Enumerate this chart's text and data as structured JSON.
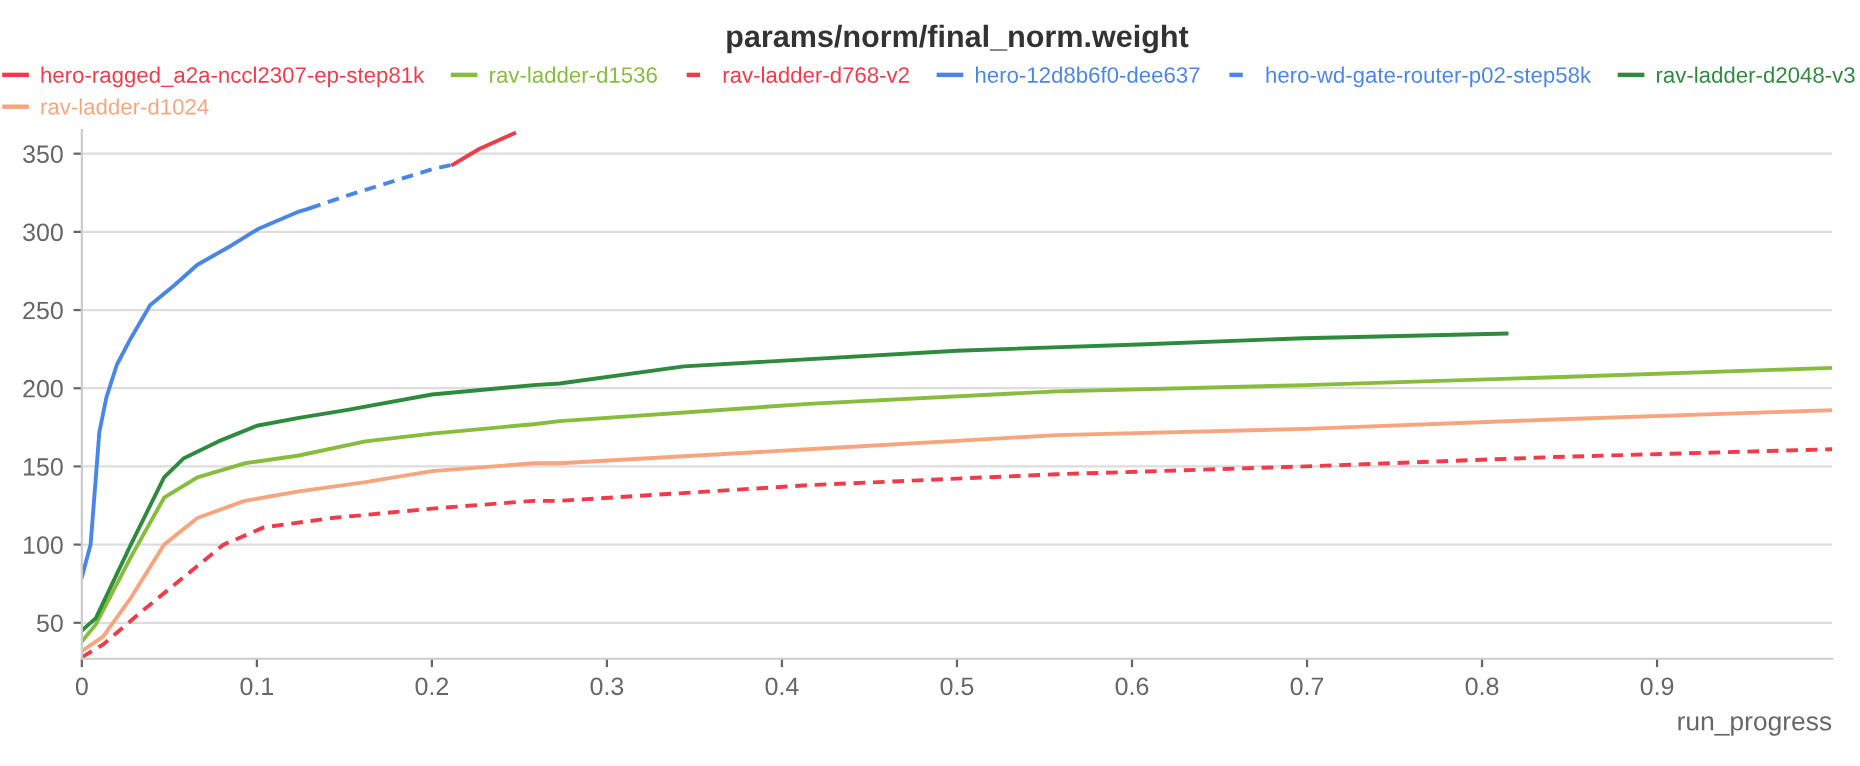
{
  "chart_data": {
    "type": "line",
    "title": "params/norm/final_norm.weight",
    "xlabel": "run_progress",
    "xlim": [
      0,
      1
    ],
    "ylim": [
      27,
      365
    ],
    "xticks": [
      0,
      0.1,
      0.2,
      0.3,
      0.4,
      0.5,
      0.6,
      0.7,
      0.8,
      0.9
    ],
    "yticks": [
      50,
      100,
      150,
      200,
      250,
      300,
      350
    ],
    "grid": "y",
    "legend": "top",
    "marker": "none",
    "series": [
      {
        "name": "hero-ragged_a2a-nccl2307-ep-step81k",
        "color": "#f03b4a",
        "line_style": "solid",
        "x": [
          0.212,
          0.227,
          0.247
        ],
        "values": [
          343,
          353,
          363
        ]
      },
      {
        "name": "rav-ladder-d1024",
        "color": "#f7a57e",
        "line_style": "solid",
        "x": [
          0,
          0.012,
          0.028,
          0.047,
          0.066,
          0.093,
          0.124,
          0.162,
          0.2,
          0.258,
          0.273,
          0.415,
          0.557,
          0.699,
          0.841,
          1.0
        ],
        "values": [
          32,
          41,
          66,
          100,
          117,
          128,
          134,
          140,
          147,
          152,
          152,
          161,
          170,
          174,
          180,
          186
        ]
      },
      {
        "name": "rav-ladder-d1536",
        "color": "#86bd3c",
        "line_style": "solid",
        "x": [
          0,
          0.008,
          0.028,
          0.047,
          0.066,
          0.093,
          0.124,
          0.162,
          0.2,
          0.258,
          0.273,
          0.415,
          0.557,
          0.699,
          0.841,
          1.0
        ],
        "values": [
          38,
          49,
          92,
          130,
          143,
          152,
          157,
          166,
          171,
          177,
          179,
          190,
          198,
          202,
          207,
          213
        ]
      },
      {
        "name": "rav-ladder-d768-v2",
        "color": "#f03b4a",
        "line_style": "dashed",
        "x": [
          0,
          0.012,
          0.035,
          0.058,
          0.081,
          0.104,
          0.143,
          0.2,
          0.258,
          0.273,
          0.415,
          0.557,
          0.699,
          0.841,
          1.0
        ],
        "values": [
          28,
          36,
          58,
          79,
          100,
          111,
          117,
          123,
          128,
          128,
          138,
          145,
          150,
          156,
          161
        ]
      },
      {
        "name": "hero-12d8b6f0-dee637",
        "color": "#4a86e8",
        "line_style": "solid",
        "x": [
          0,
          0.005,
          0.008,
          0.01,
          0.014,
          0.02,
          0.028,
          0.039,
          0.053,
          0.066,
          0.085,
          0.101,
          0.124,
          0.13
        ],
        "values": [
          79,
          100,
          143,
          172,
          194,
          215,
          232,
          253,
          266,
          279,
          291,
          302,
          313,
          315
        ]
      },
      {
        "name": "hero-wd-gate-router-p02-step58k",
        "color": "#4a86e8",
        "line_style": "dashed",
        "x": [
          0.13,
          0.151,
          0.174,
          0.2,
          0.212
        ],
        "values": [
          315,
          323,
          331,
          340,
          343
        ]
      },
      {
        "name": "rav-ladder-d2048-v3",
        "color": "#2e8b3e",
        "line_style": "solid",
        "x": [
          0,
          0.008,
          0.028,
          0.047,
          0.058,
          0.078,
          0.1,
          0.124,
          0.151,
          0.2,
          0.258,
          0.273,
          0.344,
          0.5,
          0.604,
          0.698,
          0.814
        ],
        "values": [
          45,
          53,
          100,
          143,
          155,
          166,
          176,
          181,
          186,
          196,
          202,
          203,
          214,
          224,
          228,
          232,
          235
        ]
      }
    ]
  }
}
